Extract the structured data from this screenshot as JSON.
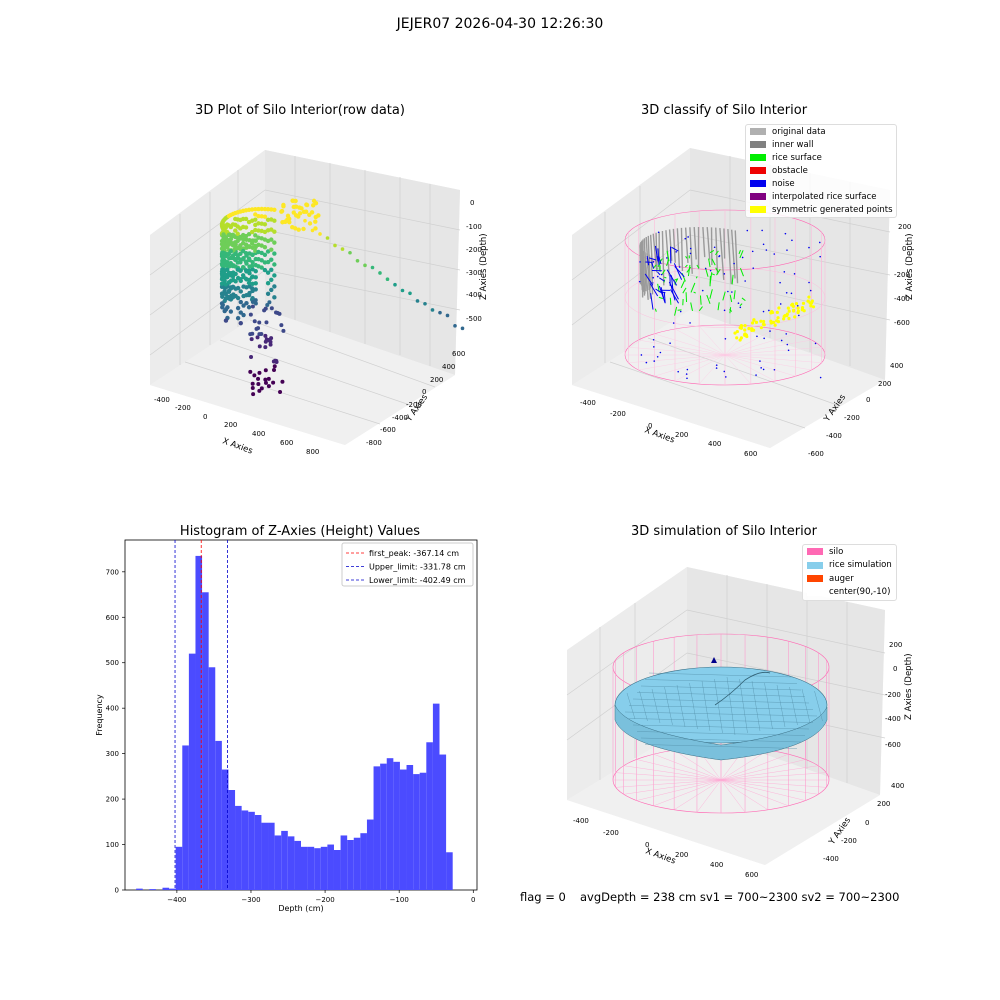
{
  "suptitle": "JEJER07 2026-04-30 12:26:30",
  "panels": {
    "raw": {
      "title": "3D Plot of Silo Interior(row data)",
      "xlabel": "X Axies",
      "ylabel": "Y Axies",
      "zlabel": "Z Axies (Depth)",
      "xticks": [
        "-400",
        "-200",
        "0",
        "200",
        "400",
        "600",
        "800"
      ],
      "yticks": [
        "600",
        "400",
        "200",
        "0",
        "-200",
        "-400",
        "-600",
        "-800"
      ],
      "zticks": [
        "0",
        "-100",
        "-200",
        "-300",
        "-400",
        "-500"
      ]
    },
    "classify": {
      "title": "3D classify of Silo Interior",
      "xlabel": "X Axies",
      "ylabel": "Y Axies",
      "zlabel": "Z Axies (Depth)",
      "xticks": [
        "-400",
        "-200",
        "0",
        "200",
        "400",
        "600"
      ],
      "yticks": [
        "400",
        "200",
        "0",
        "-200",
        "-400",
        "-600"
      ],
      "zticks": [
        "200",
        "0",
        "-200",
        "-400",
        "-600"
      ],
      "legend": [
        {
          "label": "original data",
          "color": "#b0b0b0"
        },
        {
          "label": "inner wall",
          "color": "#808080"
        },
        {
          "label": "rice surface",
          "color": "#00ee00"
        },
        {
          "label": "obstacle",
          "color": "#ee0000"
        },
        {
          "label": "noise",
          "color": "#0000ee"
        },
        {
          "label": "interpolated rice surface",
          "color": "#800080"
        },
        {
          "label": "symmetric generated points",
          "color": "#ffff00"
        }
      ]
    },
    "simulation": {
      "title": "3D simulation of Silo Interior",
      "xlabel": "X Axies",
      "ylabel": "Y Axies",
      "zlabel": "Z Axies (Depth)",
      "xticks": [
        "-400",
        "-200",
        "0",
        "200",
        "400",
        "600"
      ],
      "yticks": [
        "400",
        "200",
        "0",
        "-200",
        "-400"
      ],
      "zticks": [
        "200",
        "0",
        "-200",
        "-400",
        "-600"
      ],
      "legend": [
        {
          "label": "silo",
          "color": "#ff69b4"
        },
        {
          "label": "rice simulation",
          "color": "#87ceeb"
        },
        {
          "label": "auger",
          "color": "#ff4500"
        },
        {
          "label": "center(90,-10)",
          "color": "#ffffff"
        }
      ]
    }
  },
  "footer": {
    "flag": "flag = 0",
    "stats": "avgDepth = 238 cm  sv1 = 700~2300  sv2 = 700~2300"
  },
  "chart_data": [
    {
      "type": "bar",
      "title": "Histogram of Z-Axies (Height) Values",
      "xlabel": "Depth (cm)",
      "ylabel": "Frequency",
      "xlim": [
        -470,
        5
      ],
      "ylim": [
        0,
        770
      ],
      "xticks": [
        -400,
        -300,
        -200,
        -100,
        0
      ],
      "yticks": [
        0,
        100,
        200,
        300,
        400,
        500,
        600,
        700
      ],
      "bar_color": "#4b4bff",
      "bin_edges_start": -455,
      "bin_width": 8.9,
      "values": [
        3,
        0,
        2,
        0,
        5,
        3,
        95,
        318,
        520,
        735,
        655,
        490,
        328,
        265,
        220,
        185,
        175,
        172,
        165,
        148,
        148,
        120,
        130,
        118,
        108,
        95,
        95,
        92,
        95,
        100,
        88,
        120,
        110,
        115,
        125,
        155,
        272,
        278,
        290,
        282,
        265,
        275,
        255,
        258,
        325,
        410,
        298,
        83
      ],
      "lines": [
        {
          "label": "first_peak: -367.14 cm",
          "x": -367.14,
          "color": "#ff0000"
        },
        {
          "label": "Upper_limit: -331.78 cm",
          "x": -331.78,
          "color": "#0000cc"
        },
        {
          "label": "Lower_limit: -402.49 cm",
          "x": -402.49,
          "color": "#0000cc"
        }
      ],
      "legend_position": "top-right"
    }
  ]
}
